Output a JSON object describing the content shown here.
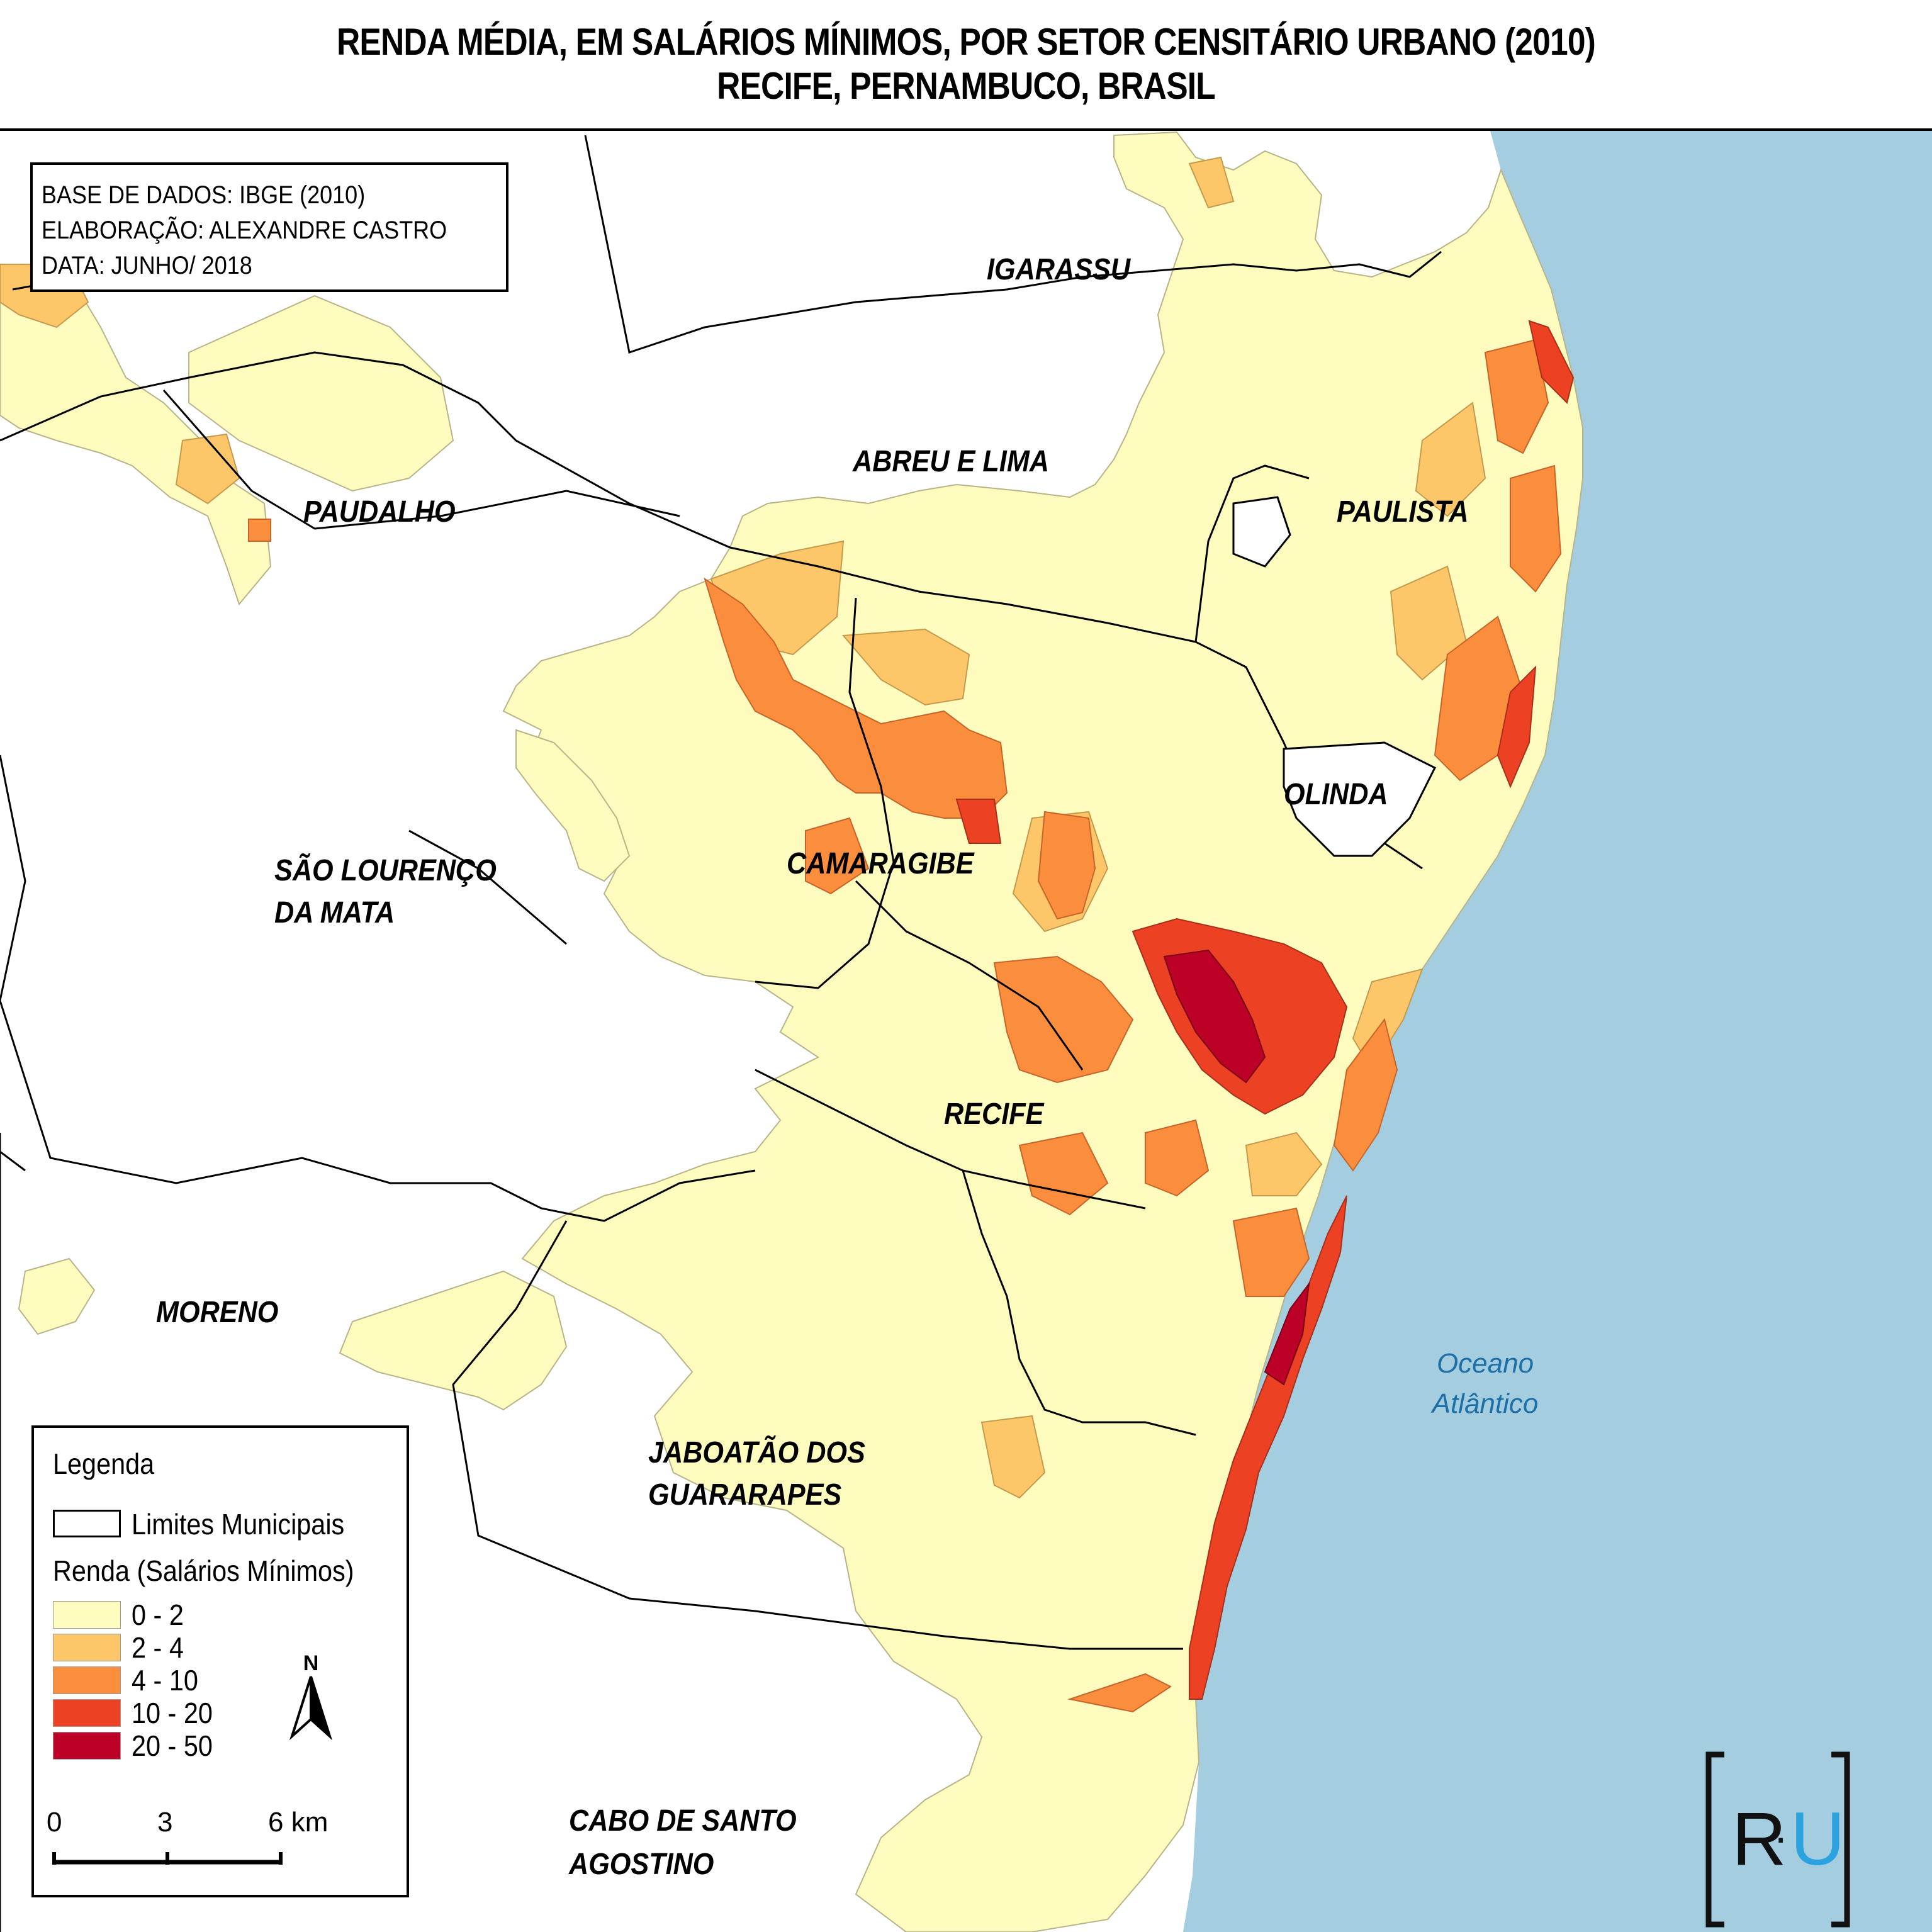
{
  "title": {
    "line1": "RENDA MÉDIA, EM SALÁRIOS MÍNIMOS, POR SETOR CENSITÁRIO URBANO (2010)",
    "line2": "RECIFE, PERNAMBUCO, BRASIL"
  },
  "info": {
    "base": "BASE DE DADOS: IBGE (2010)",
    "author": "ELABORAÇÃO: ALEXANDRE CASTRO",
    "date": "DATA: JUNHO/ 2018"
  },
  "municipalities": {
    "igarassu": "IGARASSU",
    "abreu_e_lima": "ABREU E LIMA",
    "paudalho": "PAUDALHO",
    "paulista": "PAULISTA",
    "olinda": "OLINDA",
    "sao_lourenco_1": "SÃO LOURENÇO",
    "sao_lourenco_2": "DA MATA",
    "camaragibe": "CAMARAGIBE",
    "recife": "RECIFE",
    "moreno": "MORENO",
    "jaboatao_1": "JABOATÃO DOS",
    "jaboatao_2": "GUARARAPES",
    "cabo_1": "CABO DE SANTO",
    "cabo_2": "AGOSTINO"
  },
  "ocean": {
    "line1": "Oceano",
    "line2": "Atlântico"
  },
  "legend": {
    "title": "Legenda",
    "limits_label": "Limites Municipais",
    "income_title": "Renda (Salários Mínimos)",
    "classes": [
      {
        "label": "0 - 2",
        "color": "#fdfbbd"
      },
      {
        "label": "2 - 4",
        "color": "#fdc769"
      },
      {
        "label": "4 - 10",
        "color": "#fb8e3d"
      },
      {
        "label": "10 - 20",
        "color": "#ed4124"
      },
      {
        "label": "20 - 50",
        "color": "#bd0026"
      }
    ]
  },
  "north_arrow": {
    "label": "N"
  },
  "scale_bar": {
    "ticks": [
      "0",
      "3",
      "6 km"
    ]
  },
  "logo": {
    "left": "R",
    "dot": "·",
    "right": "U"
  },
  "colors": {
    "ocean": "#a4cde0",
    "land_outside": "#ffffff",
    "boundary": "#000000"
  }
}
